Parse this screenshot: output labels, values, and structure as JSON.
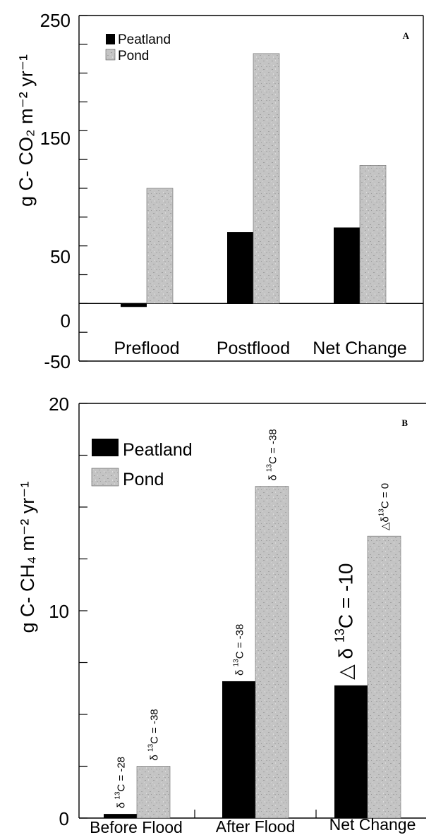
{
  "chart_data": [
    {
      "type": "bar",
      "panel_label": "A",
      "ylabel": "g C- CO₂ m⁻² yr⁻¹",
      "categories": [
        "Preflood",
        "Postflood",
        "Net Change"
      ],
      "ylim": [
        -50,
        250
      ],
      "yticks": [
        "250",
        "150",
        "50",
        "0",
        "-50"
      ],
      "series": [
        {
          "name": "Peatland",
          "values": [
            -3,
            62,
            66
          ],
          "color": "#000000"
        },
        {
          "name": "Pond",
          "values": [
            100,
            217,
            120
          ],
          "color": "#bdbdbd"
        }
      ],
      "legend_position": "top-left"
    },
    {
      "type": "bar",
      "panel_label": "B",
      "ylabel": "g C- CH₄ m⁻² yr⁻¹",
      "categories": [
        "Before Flood",
        "After Flood",
        "Net Change"
      ],
      "ylim": [
        0,
        20
      ],
      "yticks": [
        "20",
        "10",
        "0"
      ],
      "series": [
        {
          "name": "Peatland",
          "values": [
            0.2,
            6.6,
            6.4
          ],
          "color": "#000000"
        },
        {
          "name": "Pond",
          "values": [
            2.5,
            16.0,
            13.6
          ],
          "color": "#bdbdbd"
        }
      ],
      "legend_position": "top-left",
      "annotations": [
        {
          "category": 0,
          "series": 0,
          "prefix": "δ ",
          "sup": "13",
          "text": "C = -28"
        },
        {
          "category": 0,
          "series": 1,
          "prefix": "δ ",
          "sup": "13",
          "text": "C = -38"
        },
        {
          "category": 1,
          "series": 0,
          "prefix": "δ ",
          "sup": "13",
          "text": "C = -38"
        },
        {
          "category": 1,
          "series": 1,
          "prefix": "δ ",
          "sup": "13",
          "text": "C = -38"
        },
        {
          "category": 2,
          "series": 0,
          "prefix": "△ δ ",
          "sup": "13",
          "text": "C = -10",
          "large": true
        },
        {
          "category": 2,
          "series": 1,
          "prefix": "△δ",
          "sup": "13",
          "text": "C = 0"
        }
      ]
    }
  ]
}
